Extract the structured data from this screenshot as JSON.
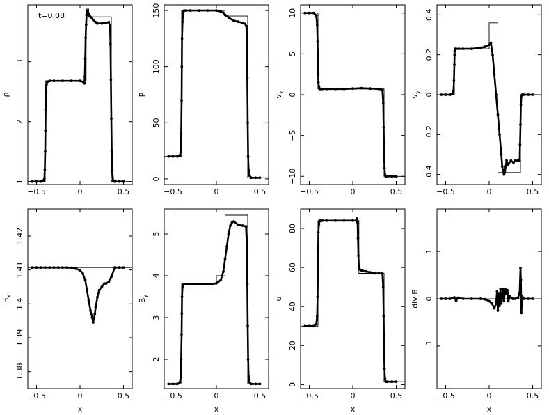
{
  "figure": {
    "annotation": "t=0.08"
  },
  "chart_data": [
    {
      "type": "scatter",
      "ylabel": "ρ",
      "xlabel": "",
      "xlim": [
        -0.6,
        0.6
      ],
      "ylim": [
        0.95,
        3.95
      ],
      "xticks": [
        -0.5,
        0,
        0.5
      ],
      "xtick_labels": [
        "−0.5",
        "0",
        "0.5"
      ],
      "yticks": [
        1,
        2,
        3
      ],
      "ytick_labels": [
        "1",
        "2",
        "3"
      ],
      "reference": {
        "x": [
          -0.6,
          -0.4,
          -0.4,
          0.07,
          0.07,
          0.1,
          0.1,
          0.36,
          0.36,
          0.6
        ],
        "y": [
          1,
          1,
          2.68,
          2.68,
          3.88,
          3.88,
          3.75,
          3.75,
          1,
          1
        ]
      },
      "particles": {
        "x": [
          -0.55,
          -0.5,
          -0.45,
          -0.42,
          -0.41,
          -0.405,
          -0.4,
          -0.398,
          -0.395,
          -0.39,
          -0.385,
          -0.38,
          -0.37,
          -0.35,
          -0.3,
          -0.2,
          -0.1,
          0,
          0.04,
          0.05,
          0.055,
          0.06,
          0.065,
          0.07,
          0.075,
          0.08,
          0.09,
          0.1,
          0.12,
          0.15,
          0.18,
          0.2,
          0.25,
          0.3,
          0.33,
          0.345,
          0.35,
          0.355,
          0.36,
          0.365,
          0.37,
          0.38,
          0.4,
          0.45,
          0.5
        ],
        "y": [
          1,
          1,
          1,
          1.02,
          1.05,
          1.2,
          1.5,
          1.85,
          2.2,
          2.5,
          2.62,
          2.66,
          2.67,
          2.68,
          2.68,
          2.68,
          2.68,
          2.68,
          2.66,
          2.64,
          2.75,
          3.05,
          3.4,
          3.62,
          3.78,
          3.85,
          3.82,
          3.8,
          3.75,
          3.7,
          3.66,
          3.64,
          3.64,
          3.65,
          3.66,
          3.6,
          3.3,
          2.7,
          2.05,
          1.5,
          1.2,
          1.02,
          1,
          1,
          1
        ]
      }
    },
    {
      "type": "scatter",
      "ylabel": "P",
      "xlabel": "",
      "xlim": [
        -0.6,
        0.6
      ],
      "ylim": [
        -5,
        155
      ],
      "xticks": [
        -0.5,
        0,
        0.5
      ],
      "xtick_labels": [
        "−0.5",
        "0",
        "0.5"
      ],
      "yticks": [
        0,
        50,
        100,
        150
      ],
      "ytick_labels": [
        "0",
        "50",
        "100",
        "150"
      ],
      "reference": {
        "x": [
          -0.6,
          -0.4,
          -0.4,
          0.1,
          0.1,
          0.36,
          0.36,
          0.6
        ],
        "y": [
          20,
          20,
          150,
          150,
          145,
          145,
          1,
          1
        ]
      },
      "particles": {
        "x": [
          -0.55,
          -0.5,
          -0.45,
          -0.42,
          -0.41,
          -0.405,
          -0.4,
          -0.398,
          -0.395,
          -0.39,
          -0.385,
          -0.38,
          -0.37,
          -0.35,
          -0.3,
          -0.2,
          -0.1,
          0,
          0.05,
          0.08,
          0.1,
          0.12,
          0.15,
          0.2,
          0.25,
          0.3,
          0.33,
          0.345,
          0.35,
          0.355,
          0.36,
          0.365,
          0.37,
          0.38,
          0.4,
          0.45,
          0.5
        ],
        "y": [
          20,
          20,
          20,
          21,
          25,
          40,
          70,
          100,
          125,
          140,
          146,
          149,
          150,
          150,
          150,
          150,
          150,
          150,
          149,
          148,
          146,
          145,
          143,
          141,
          140,
          139,
          138,
          136,
          120,
          90,
          50,
          20,
          8,
          3,
          1,
          1,
          1
        ]
      }
    },
    {
      "type": "scatter",
      "ylabel": "vx",
      "xlabel": "",
      "xlim": [
        -0.6,
        0.6
      ],
      "ylim": [
        -11,
        11
      ],
      "xticks": [
        -0.5,
        0,
        0.5
      ],
      "xtick_labels": [
        "−0.5",
        "0",
        "0.5"
      ],
      "yticks": [
        -10,
        -5,
        0,
        5,
        10
      ],
      "ytick_labels": [
        "−10",
        "−5",
        "0",
        "5",
        "10"
      ],
      "reference": {
        "x": [
          -0.6,
          -0.4,
          -0.4,
          0.36,
          0.36,
          0.6
        ],
        "y": [
          10,
          10,
          0.7,
          0.7,
          -10,
          -10
        ]
      },
      "particles": {
        "x": [
          -0.55,
          -0.5,
          -0.45,
          -0.42,
          -0.41,
          -0.405,
          -0.4,
          -0.398,
          -0.395,
          -0.39,
          -0.385,
          -0.38,
          -0.37,
          -0.35,
          -0.3,
          -0.2,
          -0.1,
          0,
          0.1,
          0.2,
          0.3,
          0.34,
          0.35,
          0.355,
          0.36,
          0.365,
          0.37,
          0.38,
          0.4,
          0.45,
          0.5
        ],
        "y": [
          10,
          10,
          10,
          9.7,
          8.5,
          6.5,
          4,
          2.5,
          1.5,
          1,
          0.8,
          0.7,
          0.7,
          0.7,
          0.7,
          0.7,
          0.7,
          0.75,
          0.8,
          0.75,
          0.7,
          0.6,
          -1,
          -4,
          -7,
          -9,
          -9.8,
          -10,
          -10,
          -10,
          -10
        ]
      }
    },
    {
      "type": "scatter",
      "ylabel": "vy",
      "xlabel": "",
      "xlim": [
        -0.6,
        0.6
      ],
      "ylim": [
        -0.45,
        0.45
      ],
      "xticks": [
        -0.5,
        0,
        0.5
      ],
      "xtick_labels": [
        "−0.5",
        "0",
        "0.5"
      ],
      "yticks": [
        -0.4,
        -0.2,
        0,
        0.2,
        0.4
      ],
      "ytick_labels": [
        "−0.4",
        "−0.2",
        "0",
        "0.2",
        "0.4"
      ],
      "reference": {
        "x": [
          -0.6,
          -0.4,
          -0.4,
          0,
          0,
          0.1,
          0.1,
          0.36,
          0.36,
          0.6
        ],
        "y": [
          0,
          0,
          0.23,
          0.23,
          0.36,
          0.36,
          -0.39,
          -0.39,
          0,
          0
        ]
      },
      "particles": {
        "x": [
          -0.55,
          -0.5,
          -0.45,
          -0.42,
          -0.41,
          -0.405,
          -0.4,
          -0.398,
          -0.395,
          -0.39,
          -0.38,
          -0.35,
          -0.3,
          -0.2,
          -0.1,
          -0.05,
          0,
          0.02,
          0.04,
          0.06,
          0.08,
          0.1,
          0.12,
          0.14,
          0.15,
          0.16,
          0.17,
          0.18,
          0.19,
          0.2,
          0.22,
          0.25,
          0.28,
          0.3,
          0.33,
          0.35,
          0.355,
          0.36,
          0.365,
          0.37,
          0.38,
          0.4,
          0.45,
          0.5
        ],
        "y": [
          0,
          0,
          0,
          0.005,
          0.02,
          0.07,
          0.15,
          0.2,
          0.22,
          0.23,
          0.23,
          0.23,
          0.23,
          0.23,
          0.235,
          0.24,
          0.25,
          0.26,
          0.2,
          0.1,
          0,
          -0.1,
          -0.2,
          -0.3,
          -0.36,
          -0.38,
          -0.4,
          -0.39,
          -0.36,
          -0.33,
          -0.35,
          -0.33,
          -0.34,
          -0.33,
          -0.33,
          -0.33,
          -0.25,
          -0.15,
          -0.05,
          -0.01,
          0,
          0,
          0,
          0
        ]
      }
    },
    {
      "type": "scatter",
      "ylabel": "Bx",
      "xlabel": "x",
      "xlim": [
        -0.6,
        0.6
      ],
      "ylim": [
        1.375,
        1.428
      ],
      "xticks": [
        -0.5,
        0,
        0.5
      ],
      "xtick_labels": [
        "−0.5",
        "0",
        "0.5"
      ],
      "yticks": [
        1.38,
        1.39,
        1.4,
        1.41,
        1.42
      ],
      "ytick_labels": [
        "1.38",
        "1.39",
        "1.4",
        "1.41",
        "1.42"
      ],
      "reference": {
        "x": [
          -0.6,
          0.6
        ],
        "y": [
          1.4107,
          1.4107
        ]
      },
      "particles": {
        "x": [
          -0.55,
          -0.5,
          -0.45,
          -0.4,
          -0.35,
          -0.3,
          -0.25,
          -0.2,
          -0.15,
          -0.1,
          -0.05,
          0,
          0.03,
          0.06,
          0.08,
          0.1,
          0.12,
          0.14,
          0.15,
          0.16,
          0.17,
          0.18,
          0.2,
          0.22,
          0.25,
          0.28,
          0.3,
          0.33,
          0.36,
          0.4,
          0.45,
          0.5
        ],
        "y": [
          1.4107,
          1.4107,
          1.4107,
          1.4107,
          1.4107,
          1.4107,
          1.4107,
          1.4107,
          1.4107,
          1.4106,
          1.4104,
          1.4099,
          1.409,
          1.407,
          1.404,
          1.401,
          1.398,
          1.396,
          1.3945,
          1.3955,
          1.397,
          1.399,
          1.402,
          1.404,
          1.405,
          1.406,
          1.406,
          1.4065,
          1.408,
          1.4107,
          1.4107,
          1.4107
        ]
      }
    },
    {
      "type": "scatter",
      "ylabel": "By",
      "xlabel": "x",
      "xlim": [
        -0.6,
        0.6
      ],
      "ylim": [
        1.3,
        5.6
      ],
      "xticks": [
        -0.5,
        0,
        0.5
      ],
      "xtick_labels": [
        "−0.5",
        "0",
        "0.5"
      ],
      "yticks": [
        2,
        3,
        4,
        5
      ],
      "ytick_labels": [
        "2",
        "3",
        "4",
        "5"
      ],
      "reference": {
        "x": [
          -0.6,
          -0.4,
          -0.4,
          0,
          0,
          0.1,
          0.1,
          0.36,
          0.36,
          0.6
        ],
        "y": [
          1.41,
          1.41,
          3.8,
          3.8,
          4,
          4,
          5.45,
          5.45,
          1.41,
          1.41
        ]
      },
      "particles": {
        "x": [
          -0.55,
          -0.5,
          -0.45,
          -0.42,
          -0.41,
          -0.405,
          -0.4,
          -0.398,
          -0.395,
          -0.39,
          -0.385,
          -0.38,
          -0.37,
          -0.35,
          -0.3,
          -0.2,
          -0.1,
          -0.05,
          0,
          0.02,
          0.05,
          0.08,
          0.1,
          0.12,
          0.14,
          0.16,
          0.18,
          0.2,
          0.25,
          0.3,
          0.34,
          0.35,
          0.355,
          0.36,
          0.365,
          0.37,
          0.38,
          0.4,
          0.45,
          0.5
        ],
        "y": [
          1.41,
          1.41,
          1.41,
          1.45,
          1.6,
          2,
          2.6,
          3.1,
          3.5,
          3.72,
          3.78,
          3.8,
          3.8,
          3.8,
          3.8,
          3.8,
          3.8,
          3.8,
          3.82,
          3.85,
          3.9,
          4.1,
          4.4,
          4.7,
          5,
          5.2,
          5.28,
          5.3,
          5.22,
          5.2,
          5.18,
          4.7,
          3.8,
          2.8,
          2,
          1.6,
          1.45,
          1.41,
          1.41,
          1.41
        ]
      }
    },
    {
      "type": "scatter",
      "ylabel": "u",
      "xlabel": "x",
      "xlim": [
        -0.6,
        0.6
      ],
      "ylim": [
        -2,
        90
      ],
      "xticks": [
        -0.5,
        0,
        0.5
      ],
      "xtick_labels": [
        "−0.5",
        "0",
        "0.5"
      ],
      "yticks": [
        0,
        20,
        40,
        60,
        80
      ],
      "ytick_labels": [
        "0",
        "20",
        "40",
        "60",
        "80"
      ],
      "reference": {
        "x": [
          -0.6,
          -0.4,
          -0.4,
          0.07,
          0.07,
          0.36,
          0.36,
          0.6
        ],
        "y": [
          30,
          30,
          84,
          84,
          57,
          57,
          1.5,
          1.5
        ]
      },
      "particles": {
        "x": [
          -0.55,
          -0.5,
          -0.45,
          -0.42,
          -0.41,
          -0.405,
          -0.4,
          -0.398,
          -0.395,
          -0.39,
          -0.385,
          -0.38,
          -0.37,
          -0.35,
          -0.3,
          -0.2,
          -0.1,
          0,
          0.04,
          0.05,
          0.055,
          0.06,
          0.065,
          0.07,
          0.08,
          0.1,
          0.15,
          0.2,
          0.25,
          0.3,
          0.34,
          0.35,
          0.355,
          0.36,
          0.365,
          0.37,
          0.38,
          0.4,
          0.45,
          0.5
        ],
        "y": [
          30,
          30,
          30,
          31,
          35,
          45,
          60,
          70,
          78,
          82,
          83.5,
          84,
          84,
          84,
          84,
          84,
          84,
          84,
          84,
          85,
          83,
          75,
          66,
          60,
          59,
          58.5,
          58,
          57.5,
          57,
          57,
          57,
          50,
          35,
          18,
          8,
          3,
          1.5,
          1.5,
          1.5,
          1.5
        ]
      }
    },
    {
      "type": "scatter",
      "ylabel": "div B",
      "xlabel": "x",
      "xlim": [
        -0.6,
        0.6
      ],
      "ylim": [
        -1.9,
        1.9
      ],
      "xticks": [
        -0.5,
        0,
        0.5
      ],
      "xtick_labels": [
        "−0.5",
        "0",
        "0.5"
      ],
      "yticks": [
        -1,
        0,
        1
      ],
      "ytick_labels": [
        "−1",
        "0",
        "1"
      ],
      "reference": null,
      "particles": {
        "x": [
          -0.55,
          -0.5,
          -0.45,
          -0.4,
          -0.38,
          -0.36,
          -0.3,
          -0.2,
          -0.1,
          -0.05,
          0,
          0.03,
          0.06,
          0.08,
          0.09,
          0.1,
          0.11,
          0.12,
          0.13,
          0.14,
          0.15,
          0.16,
          0.17,
          0.18,
          0.19,
          0.2,
          0.21,
          0.22,
          0.24,
          0.27,
          0.3,
          0.33,
          0.35,
          0.36,
          0.365,
          0.37,
          0.38,
          0.4,
          0.45,
          0.5
        ],
        "y": [
          0,
          0,
          0,
          0.03,
          -0.04,
          0.02,
          0,
          0,
          0,
          -0.01,
          -0.05,
          -0.1,
          -0.2,
          -0.1,
          0.15,
          -0.25,
          0.1,
          -0.15,
          0.2,
          -0.1,
          0.05,
          0.2,
          -0.05,
          0.15,
          0.2,
          0.1,
          0.18,
          -0.05,
          0.05,
          0,
          0,
          0.02,
          0.12,
          0.65,
          0.4,
          -0.3,
          0.05,
          0,
          0,
          0
        ]
      }
    }
  ]
}
